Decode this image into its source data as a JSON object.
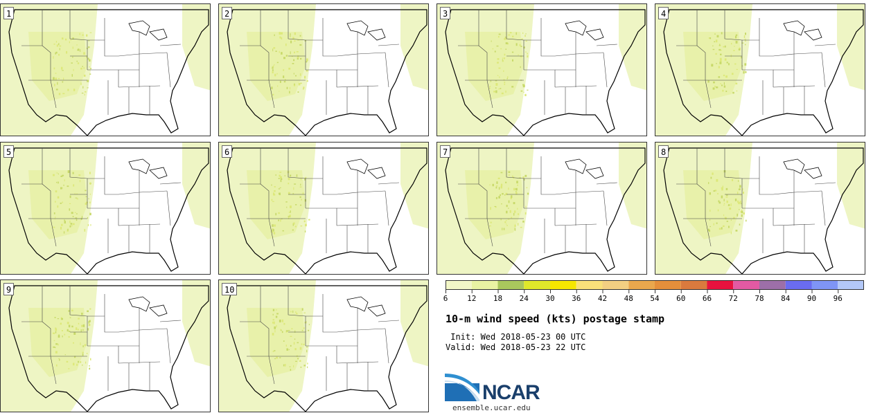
{
  "panels": [
    {
      "label": "1"
    },
    {
      "label": "2"
    },
    {
      "label": "3"
    },
    {
      "label": "4"
    },
    {
      "label": "5"
    },
    {
      "label": "6"
    },
    {
      "label": "7"
    },
    {
      "label": "8"
    },
    {
      "label": "9"
    },
    {
      "label": "10"
    }
  ],
  "colorbar": {
    "ticks": [
      "6",
      "12",
      "18",
      "24",
      "30",
      "36",
      "42",
      "48",
      "54",
      "60",
      "66",
      "72",
      "78",
      "84",
      "90",
      "96"
    ],
    "colors": [
      "#f3f7c8",
      "#e9f3a3",
      "#a9c75d",
      "#dfe82a",
      "#f6e600",
      "#f9e07a",
      "#f3cf82",
      "#eaa74d",
      "#e58f3b",
      "#da7a3e",
      "#e8123e",
      "#e35aa3",
      "#9d6fa8",
      "#6a6cf0",
      "#7f95f5",
      "#b3c8f8"
    ]
  },
  "title": "10-m wind speed (kts) postage stamp",
  "init": " Init: Wed 2018-05-23 00 UTC",
  "valid": "Valid: Wed 2018-05-23 22 UTC",
  "logo": {
    "text": "NCAR",
    "url": "ensemble.ucar.edu"
  }
}
